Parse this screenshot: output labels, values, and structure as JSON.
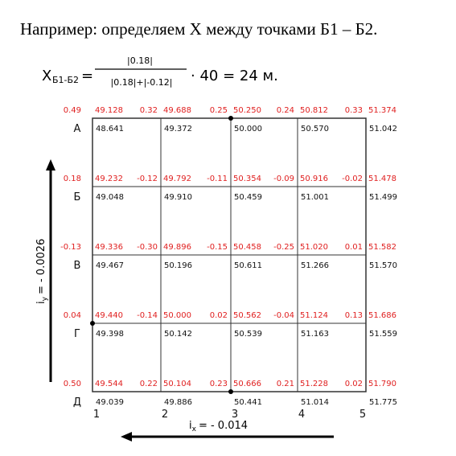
{
  "title": "Например: определяем Х между точками Б1 – Б2.",
  "formula": {
    "x": "Х",
    "x_sub": "Б1-Б2",
    "eq": "=",
    "numerator": "|0.18|",
    "denominator": "|0.18|+|-0.12|",
    "result": "· 40 = 24 м."
  },
  "grid": {
    "rows": [
      "А",
      "Б",
      "В",
      "Г",
      "Д"
    ],
    "columns": [
      "1",
      "2",
      "3",
      "4",
      "5"
    ],
    "nodes": [
      [
        {
          "work": "0.49",
          "design": "49.128",
          "actual": "48.641"
        },
        {
          "work": "0.32",
          "design": "49.688",
          "actual": "49.372"
        },
        {
          "work": "0.25",
          "design": "50.250",
          "actual": "50.000"
        },
        {
          "work": "0.24",
          "design": "50.812",
          "actual": "50.570"
        },
        {
          "work": "0.33",
          "design": "51.374",
          "actual": "51.042"
        }
      ],
      [
        {
          "work": "0.18",
          "design": "49.232",
          "actual": "49.048"
        },
        {
          "work": "-0.12",
          "design": "49.792",
          "actual": "49.910"
        },
        {
          "work": "-0.11",
          "design": "50.354",
          "actual": "50.459"
        },
        {
          "work": "-0.09",
          "design": "50.916",
          "actual": "51.001"
        },
        {
          "work": "-0.02",
          "design": "51.478",
          "actual": "51.499"
        }
      ],
      [
        {
          "work": "-0.13",
          "design": "49.336",
          "actual": "49.467"
        },
        {
          "work": "-0.30",
          "design": "49.896",
          "actual": "50.196"
        },
        {
          "work": "-0.15",
          "design": "50.458",
          "actual": "50.611"
        },
        {
          "work": "-0.25",
          "design": "51.020",
          "actual": "51.266"
        },
        {
          "work": "0.01",
          "design": "51.582",
          "actual": "51.570"
        }
      ],
      [
        {
          "work": "0.04",
          "design": "49.440",
          "actual": "49.398"
        },
        {
          "work": "-0.14",
          "design": "50.000",
          "actual": "50.142"
        },
        {
          "work": "0.02",
          "design": "50.562",
          "actual": "50.539"
        },
        {
          "work": "-0.04",
          "design": "51.124",
          "actual": "51.163"
        },
        {
          "work": "0.13",
          "design": "51.686",
          "actual": "51.559"
        }
      ],
      [
        {
          "work": "0.50",
          "design": "49.544",
          "actual": "49.039"
        },
        {
          "work": "0.22",
          "design": "50.104",
          "actual": "49.886"
        },
        {
          "work": "0.23",
          "design": "50.666",
          "actual": "50.441"
        },
        {
          "work": "0.21",
          "design": "51.228",
          "actual": "51.014"
        },
        {
          "work": "0.02",
          "design": "51.790",
          "actual": "51.775"
        }
      ]
    ]
  },
  "slope_y": {
    "base": "i",
    "sub": "y",
    "rest": "= - 0.0026"
  },
  "slope_x": {
    "base": "i",
    "sub": "x",
    "rest": "= - 0.014"
  }
}
